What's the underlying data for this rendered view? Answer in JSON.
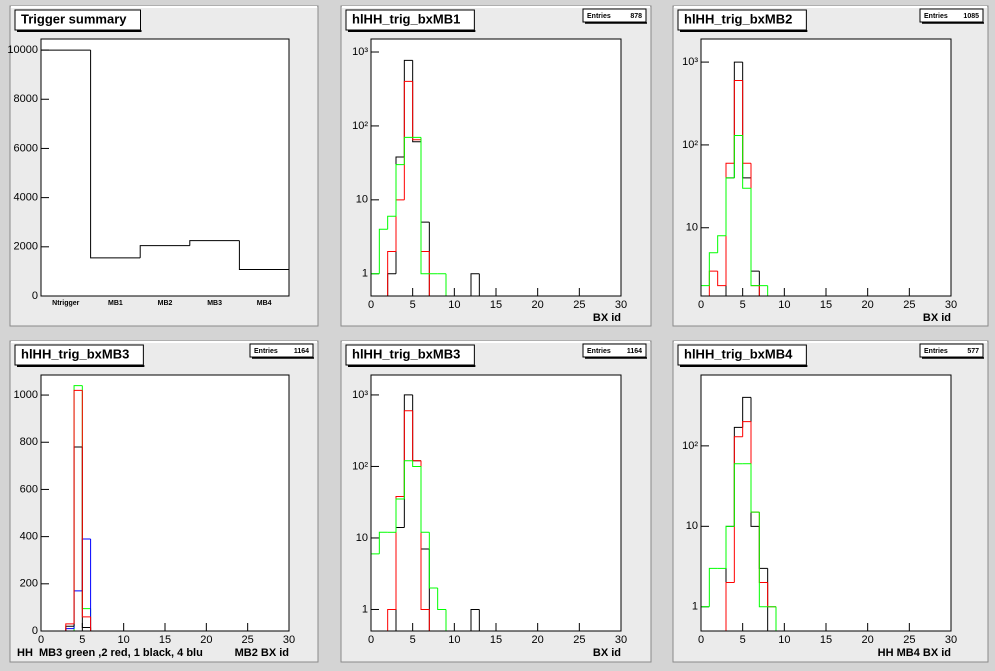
{
  "chart_data": [
    {
      "type": "step",
      "title": "Trigger summary",
      "categories": [
        "Ntrigger",
        "MB1",
        "MB2",
        "MB3",
        "MB4"
      ],
      "values": [
        10000,
        1550,
        2050,
        2250,
        1080
      ],
      "color": "#000000",
      "ylim": [
        0,
        10450
      ],
      "yticks": [
        0,
        2000,
        4000,
        6000,
        8000,
        10000
      ],
      "log_y": false
    },
    {
      "type": "histogram",
      "title": "hlHH_trig_bxMB1",
      "stats": {
        "label": "Entries",
        "value": 878
      },
      "bins": [
        0,
        1,
        2,
        3,
        4,
        5,
        6,
        7,
        8,
        9,
        10,
        11,
        12,
        13,
        14,
        15
      ],
      "series": [
        {
          "color": "#000000",
          "values": [
            0,
            0,
            1,
            38,
            772,
            61,
            5,
            0,
            0,
            0,
            0,
            0,
            1,
            0,
            0
          ]
        },
        {
          "color": "#ff0000",
          "values": [
            0,
            0,
            2,
            10,
            400,
            65,
            2,
            0,
            0,
            0,
            0,
            0,
            0,
            0,
            0
          ]
        },
        {
          "color": "#00ff00",
          "values": [
            1,
            4,
            6,
            30,
            70,
            70,
            1,
            1,
            1,
            0,
            0,
            0,
            0,
            0,
            0
          ]
        }
      ],
      "xlim": [
        0,
        30
      ],
      "xticks": [
        0,
        5,
        10,
        15,
        20,
        25,
        30
      ],
      "ylim": [
        0.5,
        1500
      ],
      "yticks": [
        1,
        10,
        {
          "value": 100,
          "label": "10²"
        },
        {
          "value": 1000,
          "label": "10³"
        }
      ],
      "log_y": true,
      "xlabel": "BX id"
    },
    {
      "type": "histogram",
      "title": "hlHH_trig_bxMB2",
      "stats": {
        "label": "Entries",
        "value": 1085
      },
      "bins": [
        0,
        1,
        2,
        3,
        4,
        5,
        6,
        7,
        8,
        9,
        10,
        11,
        12,
        13,
        14,
        15
      ],
      "series": [
        {
          "color": "#000000",
          "values": [
            0,
            0,
            0,
            40,
            1000,
            40,
            3,
            0,
            0,
            0,
            0,
            0,
            0,
            0,
            0
          ]
        },
        {
          "color": "#ff0000",
          "values": [
            0,
            3,
            2,
            60,
            600,
            60,
            2,
            0,
            0,
            0,
            0,
            0,
            0,
            0,
            0
          ]
        },
        {
          "color": "#00ff00",
          "values": [
            2,
            5,
            8,
            40,
            130,
            30,
            2,
            2,
            0,
            0,
            0,
            0,
            0,
            0,
            0
          ]
        }
      ],
      "xlim": [
        0,
        30
      ],
      "xticks": [
        0,
        5,
        10,
        15,
        20,
        25,
        30
      ],
      "ylim": [
        1.5,
        1900
      ],
      "yticks": [
        10,
        {
          "value": 100,
          "label": "10²"
        },
        {
          "value": 1000,
          "label": "10³"
        }
      ],
      "log_y": true,
      "xlabel": "BX id"
    },
    {
      "type": "histogram",
      "title": "hlHH_trig_bxMB3",
      "stats": {
        "label": "Entries",
        "value": 1164
      },
      "bins": [
        0,
        1,
        2,
        3,
        4,
        5,
        6,
        7,
        8,
        9,
        10,
        11,
        12,
        13,
        14,
        15,
        16,
        17,
        18,
        19,
        20,
        21,
        22,
        23,
        24,
        25,
        26,
        27,
        28,
        29,
        30
      ],
      "series": [
        {
          "color": "#00ff00",
          "values": [
            0,
            0,
            0,
            0,
            1040,
            95,
            0,
            0,
            0,
            0,
            0,
            0,
            0,
            0,
            0,
            0,
            0,
            0,
            0,
            0,
            0,
            0,
            0,
            0,
            0,
            0,
            0,
            0,
            0,
            0
          ]
        },
        {
          "color": "#0000ff",
          "values": [
            0,
            0,
            0,
            10,
            170,
            390,
            0,
            0,
            0,
            0,
            0,
            0,
            0,
            0,
            0,
            0,
            0,
            0,
            0,
            0,
            0,
            0,
            0,
            0,
            0,
            0,
            0,
            0,
            0,
            0
          ]
        },
        {
          "color": "#000000",
          "values": [
            0,
            0,
            0,
            20,
            780,
            15,
            0,
            0,
            0,
            0,
            0,
            0,
            0,
            0,
            0,
            0,
            0,
            0,
            0,
            0,
            0,
            0,
            0,
            0,
            0,
            0,
            0,
            0,
            0,
            0
          ]
        },
        {
          "color": "#ff0000",
          "values": [
            0,
            0,
            0,
            30,
            1020,
            60,
            0,
            0,
            0,
            0,
            0,
            0,
            0,
            0,
            0,
            0,
            0,
            0,
            0,
            0,
            0,
            0,
            0,
            0,
            0,
            0,
            0,
            0,
            0,
            0
          ]
        }
      ],
      "xlim": [
        0,
        30
      ],
      "xticks": [
        0,
        5,
        10,
        15,
        20,
        25,
        30
      ],
      "ylim": [
        0,
        1085
      ],
      "yticks": [
        0,
        200,
        400,
        600,
        800,
        1000
      ],
      "log_y": false,
      "xlabel": "MB2 BX id",
      "annotation": "HH  MB3 green ,2 red, 1 black, 4 blu"
    },
    {
      "type": "histogram",
      "title": "hlHH_trig_bxMB3",
      "stats": {
        "label": "Entries",
        "value": 1164
      },
      "bins": [
        0,
        1,
        2,
        3,
        4,
        5,
        6,
        7,
        8,
        9,
        10,
        11,
        12,
        13,
        14,
        15
      ],
      "series": [
        {
          "color": "#000000",
          "values": [
            0,
            0,
            0,
            14,
            1000,
            120,
            7,
            0,
            0,
            0,
            0,
            0,
            1,
            0,
            0
          ]
        },
        {
          "color": "#ff0000",
          "values": [
            0,
            0,
            1,
            38,
            600,
            120,
            1,
            0,
            0,
            0,
            0,
            0,
            0,
            0,
            0
          ]
        },
        {
          "color": "#00ff00",
          "values": [
            6,
            12,
            12,
            35,
            120,
            100,
            12,
            2,
            1,
            0,
            0,
            0,
            0,
            0,
            0
          ]
        }
      ],
      "xlim": [
        0,
        30
      ],
      "xticks": [
        0,
        5,
        10,
        15,
        20,
        25,
        30
      ],
      "ylim": [
        0.5,
        1900
      ],
      "yticks": [
        1,
        10,
        {
          "value": 100,
          "label": "10²"
        },
        {
          "value": 1000,
          "label": "10³"
        }
      ],
      "log_y": true,
      "xlabel": "BX id"
    },
    {
      "type": "histogram",
      "title": "hlHH_trig_bxMB4",
      "stats": {
        "label": "Entries",
        "value": 577
      },
      "bins": [
        0,
        1,
        2,
        3,
        4,
        5,
        6,
        7,
        8,
        9,
        10,
        11,
        12,
        13,
        14,
        15
      ],
      "series": [
        {
          "color": "#000000",
          "values": [
            0,
            0,
            0,
            10,
            170,
            400,
            10,
            3,
            0,
            0,
            0,
            0,
            0,
            0,
            0
          ]
        },
        {
          "color": "#ff0000",
          "values": [
            0,
            0,
            0,
            2,
            130,
            200,
            15,
            2,
            1,
            0,
            0,
            0,
            0,
            0,
            0
          ]
        },
        {
          "color": "#00ff00",
          "values": [
            1,
            3,
            3,
            10,
            60,
            60,
            15,
            1,
            1,
            0,
            0,
            0,
            0,
            0,
            0
          ]
        }
      ],
      "xlim": [
        0,
        30
      ],
      "xticks": [
        0,
        5,
        10,
        15,
        20,
        25,
        30
      ],
      "ylim": [
        0.5,
        760
      ],
      "yticks": [
        1,
        10,
        {
          "value": 100,
          "label": "10²"
        }
      ],
      "log_y": true,
      "xlabel": "HH MB4 BX id"
    }
  ]
}
